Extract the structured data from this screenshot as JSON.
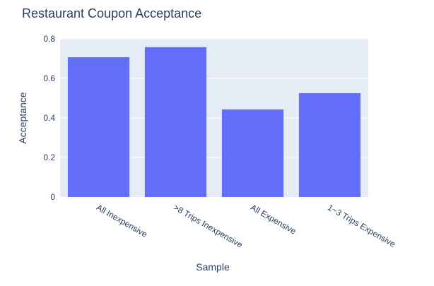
{
  "chart_data": {
    "type": "bar",
    "title": "Restaurant Coupon Acceptance",
    "xlabel": "Sample",
    "ylabel": "Acceptance",
    "categories": [
      "All Inexpensive",
      ">8 Trips Inexpensive",
      "All Expensive",
      "1~3 Trips Expensive"
    ],
    "values": [
      0.707,
      0.758,
      0.443,
      0.525
    ],
    "ylim": [
      0,
      0.8
    ],
    "yticks": [
      0,
      0.2,
      0.4,
      0.6,
      0.8
    ],
    "ytick_labels": [
      "0",
      "0.2",
      "0.4",
      "0.6",
      "0.8"
    ],
    "grid": true,
    "colors": {
      "bar": "#636efa",
      "plot_bg": "#e5ecf6",
      "grid": "#ffffff",
      "text": "#2a3f5f"
    }
  }
}
